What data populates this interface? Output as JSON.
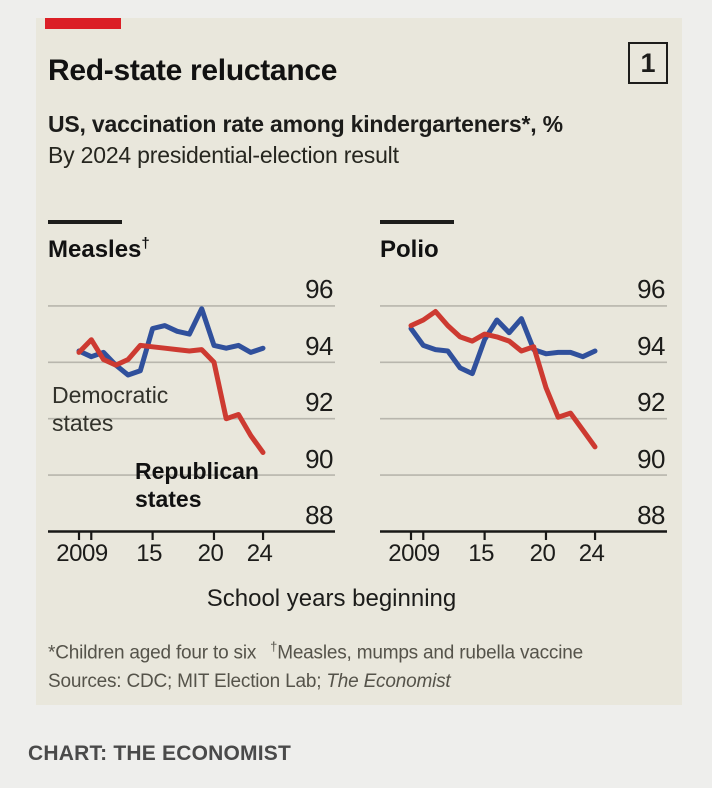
{
  "header": {
    "title": "Red-state reluctance",
    "index_badge": "1",
    "subtitle": "US, vaccination rate among kindergarteners*, %",
    "subtitle2": "By 2024 presidential-election result"
  },
  "axis": {
    "xlabel": "School years beginning"
  },
  "footnotes": {
    "note1": "*Children aged four to six",
    "note2_sup": "†",
    "note2": "Measles, mumps and rubella vaccine",
    "sources_prefix": "Sources: CDC; MIT Election Lab; ",
    "sources_italic": "The Economist"
  },
  "credit": "CHART: THE ECONOMIST",
  "colors": {
    "economist_red_tag": "#db1f26",
    "dem_blue": "#30509c",
    "rep_red": "#cd3a31",
    "gridline": "#b8b6ad",
    "axis": "#181816",
    "card_bg": "#e9e7dc",
    "page_bg": "#eeeeec"
  },
  "chart_data": [
    {
      "type": "line",
      "title": "Measles",
      "title_sup": "†",
      "x": [
        2009,
        2010,
        2011,
        2012,
        2013,
        2014,
        2015,
        2016,
        2017,
        2018,
        2019,
        2020,
        2021,
        2022,
        2023,
        2024
      ],
      "series": [
        {
          "name": "Democratic states",
          "color": "#30509c",
          "values": [
            94.4,
            94.2,
            94.35,
            93.9,
            93.55,
            93.7,
            95.2,
            95.3,
            95.1,
            95.0,
            95.9,
            94.6,
            94.5,
            94.6,
            94.35,
            94.5
          ],
          "inline_label": {
            "x": 4,
            "y": 92,
            "w": 132,
            "bold": false
          }
        },
        {
          "name": "Republican states",
          "color": "#cd3a31",
          "values": [
            94.35,
            94.8,
            94.1,
            93.9,
            94.1,
            94.6,
            94.55,
            94.5,
            94.45,
            94.4,
            94.45,
            94.0,
            92.0,
            92.15,
            91.4,
            90.8
          ],
          "inline_label": {
            "x": 87,
            "y": 168,
            "w": 128,
            "bold": true
          }
        }
      ],
      "ylim": [
        88,
        96.6
      ],
      "yticks": [
        96,
        94,
        92,
        90,
        88
      ],
      "xticks": [
        {
          "label": "2009",
          "year": 2009
        },
        {
          "label": "15",
          "year": 2015
        },
        {
          "label": "20",
          "year": 2020
        },
        {
          "label": "24",
          "year": 2024
        }
      ],
      "minor_tick_years": [
        2010
      ],
      "grid": true,
      "legend_position": "inline"
    },
    {
      "type": "line",
      "title": "Polio",
      "title_sup": "",
      "x": [
        2009,
        2010,
        2011,
        2012,
        2013,
        2014,
        2015,
        2016,
        2017,
        2018,
        2019,
        2020,
        2021,
        2022,
        2023,
        2024
      ],
      "series": [
        {
          "name": "Democratic states",
          "color": "#30509c",
          "values": [
            95.2,
            94.6,
            94.45,
            94.4,
            93.8,
            93.6,
            94.8,
            95.5,
            95.05,
            95.55,
            94.45,
            94.3,
            94.35,
            94.35,
            94.2,
            94.4
          ],
          "inline_label": null
        },
        {
          "name": "Republican states",
          "color": "#cd3a31",
          "values": [
            95.3,
            95.5,
            95.8,
            95.3,
            94.9,
            94.75,
            95.0,
            94.9,
            94.75,
            94.4,
            94.55,
            93.1,
            92.05,
            92.2,
            91.6,
            91.0
          ],
          "inline_label": null
        }
      ],
      "ylim": [
        88,
        96.6
      ],
      "yticks": [
        96,
        94,
        92,
        90,
        88
      ],
      "xticks": [
        {
          "label": "2009",
          "year": 2009
        },
        {
          "label": "15",
          "year": 2015
        },
        {
          "label": "20",
          "year": 2020
        },
        {
          "label": "24",
          "year": 2024
        }
      ],
      "minor_tick_years": [
        2010
      ],
      "grid": true,
      "legend_position": "none"
    }
  ]
}
